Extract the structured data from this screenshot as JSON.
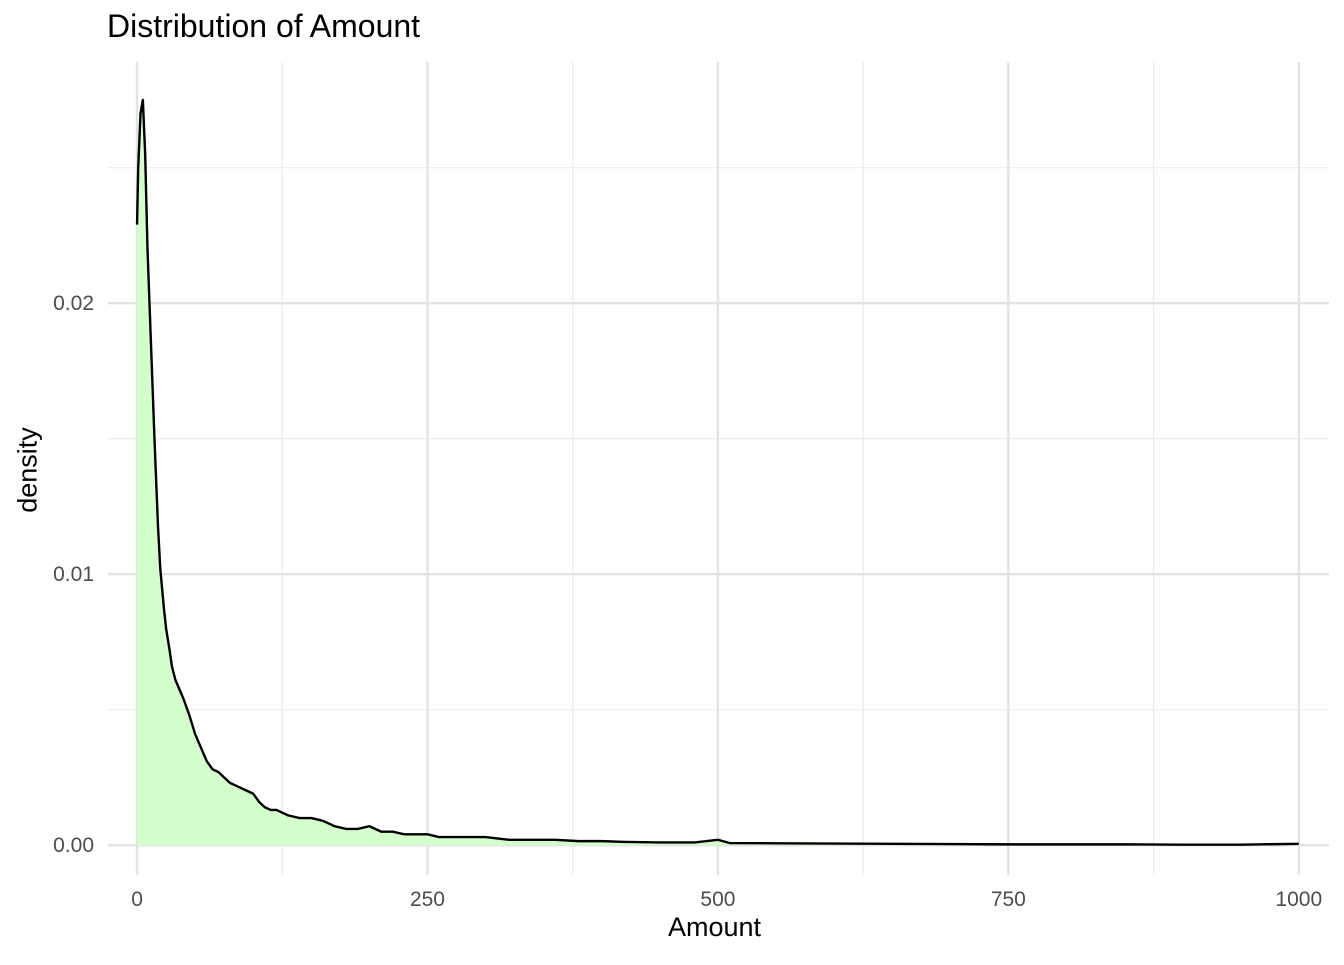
{
  "chart_data": {
    "type": "area",
    "title": "Distribution of Amount",
    "xlabel": "Amount",
    "ylabel": "density",
    "xlim": [
      -25,
      1026
    ],
    "ylim": [
      -0.0011,
      0.0289
    ],
    "x_ticks": [
      0,
      250,
      500,
      750,
      1000
    ],
    "x_tick_labels": [
      "0",
      "250",
      "500",
      "750",
      "1000"
    ],
    "x_minor_ticks": [
      125,
      375,
      625,
      875
    ],
    "y_ticks": [
      0,
      0.01,
      0.02
    ],
    "y_tick_labels": [
      "0.00",
      "0.01",
      "0.02"
    ],
    "y_minor_ticks": [
      0.005,
      0.015,
      0.025
    ],
    "grid": true,
    "legend": "none",
    "series": [
      {
        "fill": "#d4ffcc",
        "line": "#000000",
        "x": [
          0,
          1,
          3,
          5,
          7,
          9,
          12,
          15,
          18,
          20,
          23,
          25,
          28,
          30,
          33,
          37,
          40,
          45,
          50,
          55,
          60,
          65,
          70,
          75,
          80,
          85,
          90,
          95,
          100,
          105,
          110,
          115,
          120,
          125,
          130,
          140,
          150,
          160,
          170,
          180,
          190,
          200,
          210,
          220,
          230,
          240,
          250,
          260,
          280,
          300,
          320,
          340,
          360,
          380,
          400,
          420,
          450,
          480,
          500,
          510,
          550,
          600,
          650,
          700,
          750,
          800,
          850,
          900,
          950,
          1000
        ],
        "y": [
          0.0229,
          0.025,
          0.027,
          0.0275,
          0.0255,
          0.022,
          0.0185,
          0.015,
          0.0118,
          0.0102,
          0.0088,
          0.008,
          0.0072,
          0.0066,
          0.0061,
          0.0057,
          0.0054,
          0.0048,
          0.0041,
          0.0036,
          0.0031,
          0.0028,
          0.0027,
          0.0025,
          0.0023,
          0.0022,
          0.0021,
          0.002,
          0.0019,
          0.0016,
          0.0014,
          0.0013,
          0.0013,
          0.0012,
          0.0011,
          0.001,
          0.001,
          0.0009,
          0.0007,
          0.0006,
          0.0006,
          0.0007,
          0.0005,
          0.0005,
          0.0004,
          0.0004,
          0.0004,
          0.0003,
          0.0003,
          0.0003,
          0.0002,
          0.0002,
          0.0002,
          0.00015,
          0.00015,
          0.00012,
          0.0001,
          0.0001,
          0.0002,
          8e-05,
          7e-05,
          6e-05,
          5e-05,
          4e-05,
          3e-05,
          3e-05,
          3e-05,
          2e-05,
          2e-05,
          5e-05
        ]
      }
    ]
  }
}
